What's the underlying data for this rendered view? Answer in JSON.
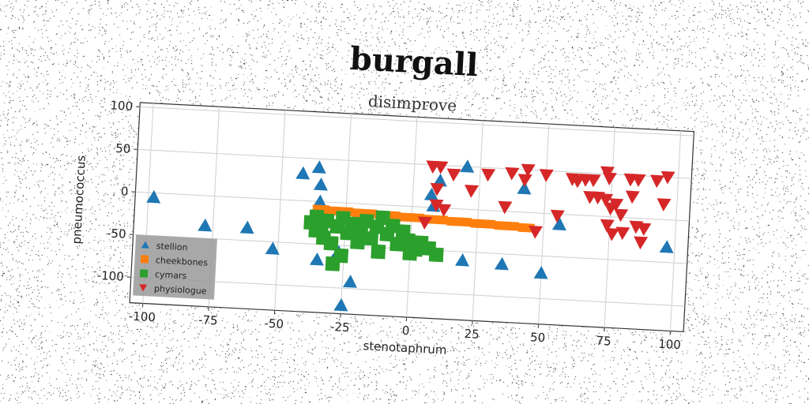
{
  "chart_data": {
    "type": "scatter",
    "title": "burgall",
    "subtitle": "disimprove",
    "xlabel": "stenotaphrum",
    "ylabel": "pneumococcus",
    "xlim": [
      -105,
      105
    ],
    "ylim": [
      -130,
      105
    ],
    "xticks": [
      -100,
      -75,
      -50,
      -25,
      0,
      25,
      50,
      75,
      100
    ],
    "yticks": [
      100,
      50,
      0,
      -50,
      -100
    ],
    "grid": true,
    "legend_position": "lower-left",
    "series": [
      {
        "name": "stellion",
        "color": "#1f77b4",
        "marker": "triangle-up",
        "points": [
          [
            -98,
            -5
          ],
          [
            -78,
            -35
          ],
          [
            -62,
            -35
          ],
          [
            -52,
            -58
          ],
          [
            -42,
            32
          ],
          [
            -36,
            40
          ],
          [
            -35,
            20
          ],
          [
            -35,
            0
          ],
          [
            -35,
            -68
          ],
          [
            -29,
            -68
          ],
          [
            -27,
            -58
          ],
          [
            -25,
            -120
          ],
          [
            -22,
            -92
          ],
          [
            7,
            15
          ],
          [
            8,
            2
          ],
          [
            10,
            32
          ],
          [
            20,
            50
          ],
          [
            20,
            -60
          ],
          [
            35,
            -62
          ],
          [
            42,
            28
          ],
          [
            50,
            -70
          ],
          [
            56,
            -12
          ],
          [
            97,
            -32
          ]
        ]
      },
      {
        "name": "cheekbones",
        "color": "#ff7f0e",
        "marker": "square",
        "points": [
          [
            -36,
            -9
          ],
          [
            -33,
            -9
          ],
          [
            -30,
            -10
          ],
          [
            -27,
            -10
          ],
          [
            -24,
            -10
          ],
          [
            -21,
            -11
          ],
          [
            -18,
            -11
          ],
          [
            -15,
            -11
          ],
          [
            -12,
            -12
          ],
          [
            -9,
            -12
          ],
          [
            -6,
            -12
          ],
          [
            -3,
            -13
          ],
          [
            0,
            -13
          ],
          [
            3,
            -13
          ],
          [
            6,
            -14
          ],
          [
            9,
            -14
          ],
          [
            12,
            -14
          ],
          [
            15,
            -15
          ],
          [
            18,
            -15
          ],
          [
            21,
            -15
          ],
          [
            24,
            -16
          ],
          [
            27,
            -16
          ],
          [
            30,
            -16
          ],
          [
            33,
            -17
          ],
          [
            36,
            -17
          ],
          [
            39,
            -17
          ],
          [
            42,
            -18
          ],
          [
            45,
            -18
          ]
        ]
      },
      {
        "name": "cymars",
        "color": "#2ca02c",
        "marker": "square",
        "points": [
          [
            -38,
            -25
          ],
          [
            -36,
            -18
          ],
          [
            -34,
            -30
          ],
          [
            -32,
            -22
          ],
          [
            -30,
            -48
          ],
          [
            -28,
            -28
          ],
          [
            -26,
            -18
          ],
          [
            -24,
            -35
          ],
          [
            -22,
            -24
          ],
          [
            -20,
            -45
          ],
          [
            -19,
            -30
          ],
          [
            -17,
            -20
          ],
          [
            -15,
            -40
          ],
          [
            -13,
            -26
          ],
          [
            -11,
            -15
          ],
          [
            -9,
            -34
          ],
          [
            -7,
            -24
          ],
          [
            -5,
            -45
          ],
          [
            -3,
            -30
          ],
          [
            -1,
            -40
          ],
          [
            0,
            -55
          ],
          [
            2,
            -50
          ],
          [
            4,
            -42
          ],
          [
            7,
            -48
          ],
          [
            10,
            -55
          ],
          [
            -26,
            -62
          ],
          [
            -29,
            -72
          ],
          [
            -12,
            -55
          ],
          [
            -33,
            -42
          ],
          [
            -36,
            -34
          ]
        ]
      },
      {
        "name": "physiologue",
        "color": "#d62728",
        "marker": "triangle-down",
        "points": [
          [
            5,
            -18
          ],
          [
            7,
            48
          ],
          [
            9,
            22
          ],
          [
            9,
            3
          ],
          [
            10,
            48
          ],
          [
            12,
            -2
          ],
          [
            15,
            40
          ],
          [
            22,
            22
          ],
          [
            28,
            42
          ],
          [
            35,
            5
          ],
          [
            37,
            45
          ],
          [
            42,
            38
          ],
          [
            43,
            50
          ],
          [
            47,
            -22
          ],
          [
            50,
            45
          ],
          [
            55,
            -2
          ],
          [
            60,
            42
          ],
          [
            62,
            40
          ],
          [
            65,
            42
          ],
          [
            67,
            22
          ],
          [
            68,
            42
          ],
          [
            70,
            22
          ],
          [
            73,
            20
          ],
          [
            73,
            52
          ],
          [
            74,
            45
          ],
          [
            74,
            -10
          ],
          [
            75,
            10
          ],
          [
            76,
            -20
          ],
          [
            77,
            15
          ],
          [
            79,
            3
          ],
          [
            80,
            -18
          ],
          [
            82,
            45
          ],
          [
            83,
            25
          ],
          [
            85,
            -10
          ],
          [
            85,
            45
          ],
          [
            87,
            -28
          ],
          [
            88,
            -12
          ],
          [
            92,
            45
          ],
          [
            95,
            18
          ],
          [
            96,
            50
          ]
        ]
      }
    ]
  }
}
